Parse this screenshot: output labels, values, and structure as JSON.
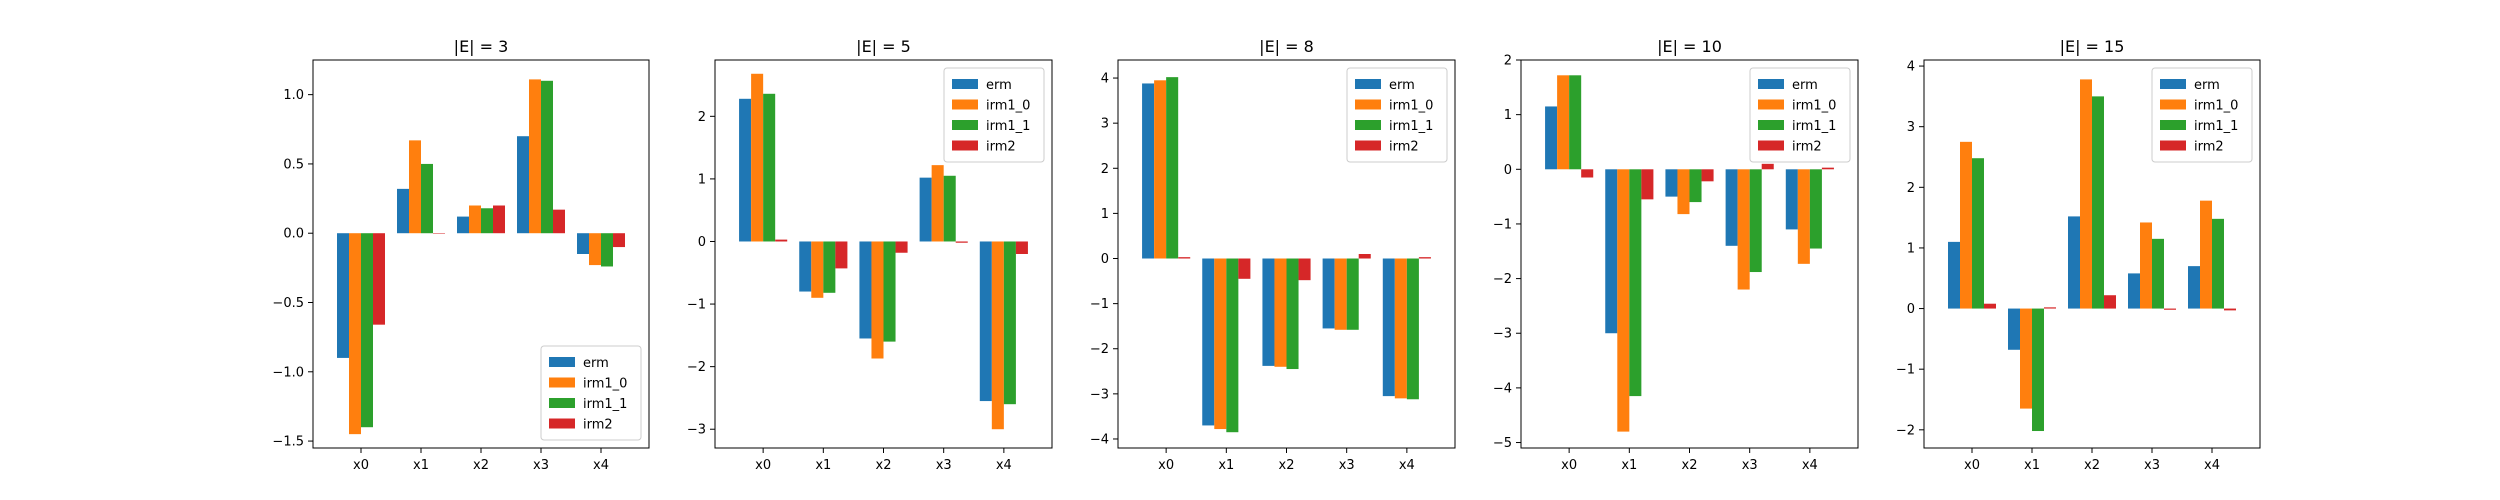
{
  "chart_data": [
    {
      "type": "bar",
      "title": "|E| = 3",
      "categories": [
        "x0",
        "x1",
        "x2",
        "x3",
        "x4"
      ],
      "ylim": [
        -1.55,
        1.25
      ],
      "yticks": [
        -1.5,
        -1.0,
        -0.5,
        0.0,
        0.5,
        1.0
      ],
      "ytick_labels": [
        "−1.5",
        "−1.0",
        "−0.5",
        "0.0",
        "0.5",
        "1.0"
      ],
      "legend_position": "lower-right",
      "series": [
        {
          "name": "erm",
          "values": [
            -0.9,
            0.32,
            0.12,
            0.7,
            -0.15
          ]
        },
        {
          "name": "irm1_0",
          "values": [
            -1.45,
            0.67,
            0.2,
            1.11,
            -0.23
          ]
        },
        {
          "name": "irm1_1",
          "values": [
            -1.4,
            0.5,
            0.18,
            1.1,
            -0.24
          ]
        },
        {
          "name": "irm2",
          "values": [
            -0.66,
            0.0,
            0.2,
            0.17,
            -0.1
          ]
        }
      ]
    },
    {
      "type": "bar",
      "title": "|E| = 5",
      "categories": [
        "x0",
        "x1",
        "x2",
        "x3",
        "x4"
      ],
      "ylim": [
        -3.3,
        2.9
      ],
      "yticks": [
        -3,
        -2,
        -1,
        0,
        1,
        2
      ],
      "ytick_labels": [
        "−3",
        "−2",
        "−1",
        "0",
        "1",
        "2"
      ],
      "legend_position": "upper-right",
      "series": [
        {
          "name": "erm",
          "values": [
            2.28,
            -0.8,
            -1.55,
            1.02,
            -2.55
          ]
        },
        {
          "name": "irm1_0",
          "values": [
            2.68,
            -0.9,
            -1.87,
            1.22,
            -3.0
          ]
        },
        {
          "name": "irm1_1",
          "values": [
            2.36,
            -0.82,
            -1.6,
            1.05,
            -2.6
          ]
        },
        {
          "name": "irm2",
          "values": [
            0.03,
            -0.43,
            -0.18,
            -0.02,
            -0.2
          ]
        }
      ]
    },
    {
      "type": "bar",
      "title": "|E| = 8",
      "categories": [
        "x0",
        "x1",
        "x2",
        "x3",
        "x4"
      ],
      "ylim": [
        -4.2,
        4.4
      ],
      "yticks": [
        -4,
        -3,
        -2,
        -1,
        0,
        1,
        2,
        3,
        4
      ],
      "ytick_labels": [
        "−4",
        "−3",
        "−2",
        "−1",
        "0",
        "1",
        "2",
        "3",
        "4"
      ],
      "legend_position": "upper-right",
      "series": [
        {
          "name": "erm",
          "values": [
            3.88,
            -3.7,
            -2.38,
            -1.55,
            -3.05
          ]
        },
        {
          "name": "irm1_0",
          "values": [
            3.95,
            -3.78,
            -2.4,
            -1.58,
            -3.1
          ]
        },
        {
          "name": "irm1_1",
          "values": [
            4.02,
            -3.85,
            -2.45,
            -1.58,
            -3.12
          ]
        },
        {
          "name": "irm2",
          "values": [
            0.03,
            -0.45,
            -0.48,
            0.1,
            0.03
          ]
        }
      ]
    },
    {
      "type": "bar",
      "title": "|E| = 10",
      "categories": [
        "x0",
        "x1",
        "x2",
        "x3",
        "x4"
      ],
      "ylim": [
        -5.1,
        2.0
      ],
      "yticks": [
        -5,
        -4,
        -3,
        -2,
        -1,
        0,
        1,
        2
      ],
      "ytick_labels": [
        "−5",
        "−4",
        "−3",
        "−2",
        "−1",
        "0",
        "1",
        "2"
      ],
      "legend_position": "upper-right",
      "series": [
        {
          "name": "erm",
          "values": [
            1.15,
            -3.0,
            -0.5,
            -1.4,
            -1.1
          ]
        },
        {
          "name": "irm1_0",
          "values": [
            1.72,
            -4.8,
            -0.82,
            -2.2,
            -1.73
          ]
        },
        {
          "name": "irm1_1",
          "values": [
            1.72,
            -4.15,
            -0.6,
            -1.88,
            -1.45
          ]
        },
        {
          "name": "irm2",
          "values": [
            -0.15,
            -0.55,
            -0.22,
            0.1,
            0.03
          ]
        }
      ]
    },
    {
      "type": "bar",
      "title": "|E| = 15",
      "categories": [
        "x0",
        "x1",
        "x2",
        "x3",
        "x4"
      ],
      "ylim": [
        -2.3,
        4.1
      ],
      "yticks": [
        -2,
        -1,
        0,
        1,
        2,
        3,
        4
      ],
      "ytick_labels": [
        "−2",
        "−1",
        "0",
        "1",
        "2",
        "3",
        "4"
      ],
      "legend_position": "upper-right",
      "series": [
        {
          "name": "erm",
          "values": [
            1.1,
            -0.68,
            1.52,
            0.58,
            0.7
          ]
        },
        {
          "name": "irm1_0",
          "values": [
            2.75,
            -1.65,
            3.78,
            1.42,
            1.78
          ]
        },
        {
          "name": "irm1_1",
          "values": [
            2.48,
            -2.02,
            3.5,
            1.15,
            1.48
          ]
        },
        {
          "name": "irm2",
          "values": [
            0.08,
            0.02,
            0.22,
            -0.02,
            -0.03
          ]
        }
      ]
    }
  ],
  "series_colors": [
    "#1f77b4",
    "#ff7f0e",
    "#2ca02c",
    "#d62728"
  ]
}
